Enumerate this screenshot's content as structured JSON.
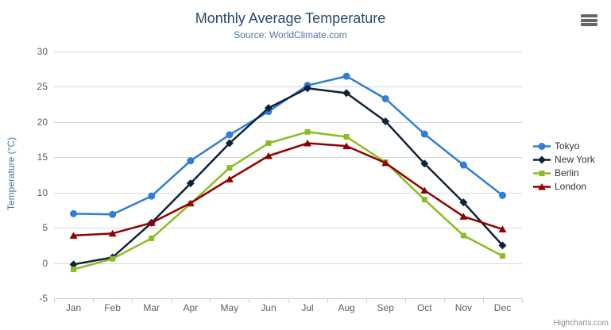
{
  "chart_data": {
    "type": "line",
    "title": "Monthly Average Temperature",
    "subtitle": "Source: WorldClimate.com",
    "categories": [
      "Jan",
      "Feb",
      "Mar",
      "Apr",
      "May",
      "Jun",
      "Jul",
      "Aug",
      "Sep",
      "Oct",
      "Nov",
      "Dec"
    ],
    "series": [
      {
        "name": "Tokyo",
        "color": "#2f7ed8",
        "marker": "circle",
        "values": [
          7.0,
          6.9,
          9.5,
          14.5,
          18.2,
          21.5,
          25.2,
          26.5,
          23.3,
          18.3,
          13.9,
          9.6
        ]
      },
      {
        "name": "New York",
        "color": "#0d233a",
        "marker": "diamond",
        "values": [
          -0.2,
          0.8,
          5.7,
          11.3,
          17.0,
          22.0,
          24.8,
          24.1,
          20.1,
          14.1,
          8.6,
          2.5
        ]
      },
      {
        "name": "Berlin",
        "color": "#8bbc21",
        "marker": "square",
        "values": [
          -0.9,
          0.6,
          3.5,
          8.4,
          13.5,
          17.0,
          18.6,
          17.9,
          14.3,
          9.0,
          3.9,
          1.0
        ]
      },
      {
        "name": "London",
        "color": "#910000",
        "marker": "triangle",
        "values": [
          3.9,
          4.2,
          5.7,
          8.5,
          11.9,
          15.2,
          17.0,
          16.6,
          14.2,
          10.3,
          6.6,
          4.8
        ]
      }
    ],
    "xlabel": "",
    "ylabel": "Temperature (°C)",
    "ylim": [
      -5,
      30
    ],
    "yticks": [
      -5,
      0,
      5,
      10,
      15,
      20,
      25,
      30
    ],
    "grid": true,
    "legend_position": "right",
    "colors": {
      "title": "#274b6d",
      "subtitle": "#4d759e",
      "axis_title": "#4d759e",
      "axis_label": "#606060",
      "grid_line": "#d8d8d8",
      "axis_line": "#c0d0e0",
      "legend_text": "#333333",
      "credits": "#8c8c8c",
      "menu_icon": "#666666"
    }
  },
  "credits": {
    "label": "Highcharts.com"
  },
  "menu": {
    "icon": "hamburger-icon"
  }
}
